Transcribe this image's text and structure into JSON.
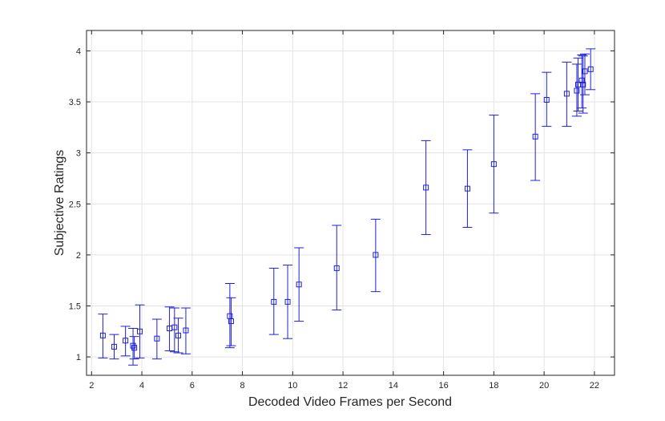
{
  "chart_data": {
    "type": "scatter",
    "title": "",
    "xlabel": "Decoded Video Frames per Second",
    "ylabel": "Subjective Ratings",
    "xlim": [
      1.8,
      22.8
    ],
    "ylim": [
      0.82,
      4.2
    ],
    "xticks": [
      2,
      4,
      6,
      8,
      10,
      12,
      14,
      16,
      18,
      20,
      22
    ],
    "yticks": [
      1,
      1.5,
      2,
      2.5,
      3,
      3.5,
      4
    ],
    "ytick_labels": [
      "1",
      "1.5",
      "2",
      "2.5",
      "3",
      "3.5",
      "4"
    ],
    "grid": true,
    "marker": "square",
    "error_bars": true,
    "color": "#1f1fdb",
    "series": [
      {
        "points": [
          {
            "x": 2.45,
            "y": 1.21,
            "lo": 0.99,
            "hi": 1.42
          },
          {
            "x": 2.9,
            "y": 1.1,
            "lo": 0.98,
            "hi": 1.22
          },
          {
            "x": 3.35,
            "y": 1.16,
            "lo": 1.01,
            "hi": 1.3
          },
          {
            "x": 3.65,
            "y": 1.11,
            "lo": 0.92,
            "hi": 1.28
          },
          {
            "x": 3.7,
            "y": 1.09,
            "lo": 0.98,
            "hi": 1.2
          },
          {
            "x": 3.92,
            "y": 1.25,
            "lo": 0.99,
            "hi": 1.51
          },
          {
            "x": 4.6,
            "y": 1.18,
            "lo": 0.98,
            "hi": 1.37
          },
          {
            "x": 5.1,
            "y": 1.28,
            "lo": 1.06,
            "hi": 1.49
          },
          {
            "x": 5.3,
            "y": 1.29,
            "lo": 1.05,
            "hi": 1.48
          },
          {
            "x": 5.45,
            "y": 1.21,
            "lo": 1.04,
            "hi": 1.38
          },
          {
            "x": 5.75,
            "y": 1.26,
            "lo": 1.03,
            "hi": 1.48
          },
          {
            "x": 7.5,
            "y": 1.4,
            "lo": 1.09,
            "hi": 1.72
          },
          {
            "x": 7.55,
            "y": 1.35,
            "lo": 1.11,
            "hi": 1.58
          },
          {
            "x": 9.25,
            "y": 1.54,
            "lo": 1.22,
            "hi": 1.87
          },
          {
            "x": 9.8,
            "y": 1.54,
            "lo": 1.18,
            "hi": 1.9
          },
          {
            "x": 10.25,
            "y": 1.71,
            "lo": 1.35,
            "hi": 2.07
          },
          {
            "x": 11.75,
            "y": 1.87,
            "lo": 1.46,
            "hi": 2.29
          },
          {
            "x": 13.3,
            "y": 2.0,
            "lo": 1.64,
            "hi": 2.35
          },
          {
            "x": 15.3,
            "y": 2.66,
            "lo": 2.2,
            "hi": 3.12
          },
          {
            "x": 16.95,
            "y": 2.65,
            "lo": 2.27,
            "hi": 3.03
          },
          {
            "x": 18.0,
            "y": 2.89,
            "lo": 2.41,
            "hi": 3.37
          },
          {
            "x": 19.65,
            "y": 3.16,
            "lo": 2.73,
            "hi": 3.58
          },
          {
            "x": 20.1,
            "y": 3.52,
            "lo": 3.26,
            "hi": 3.79
          },
          {
            "x": 20.9,
            "y": 3.58,
            "lo": 3.26,
            "hi": 3.89
          },
          {
            "x": 21.3,
            "y": 3.61,
            "lo": 3.36,
            "hi": 3.87
          },
          {
            "x": 21.35,
            "y": 3.67,
            "lo": 3.41,
            "hi": 3.93
          },
          {
            "x": 21.5,
            "y": 3.71,
            "lo": 3.44,
            "hi": 3.96
          },
          {
            "x": 21.55,
            "y": 3.67,
            "lo": 3.39,
            "hi": 3.95
          },
          {
            "x": 21.62,
            "y": 3.8,
            "lo": 3.57,
            "hi": 3.97
          },
          {
            "x": 21.85,
            "y": 3.82,
            "lo": 3.62,
            "hi": 4.02
          }
        ]
      }
    ]
  }
}
